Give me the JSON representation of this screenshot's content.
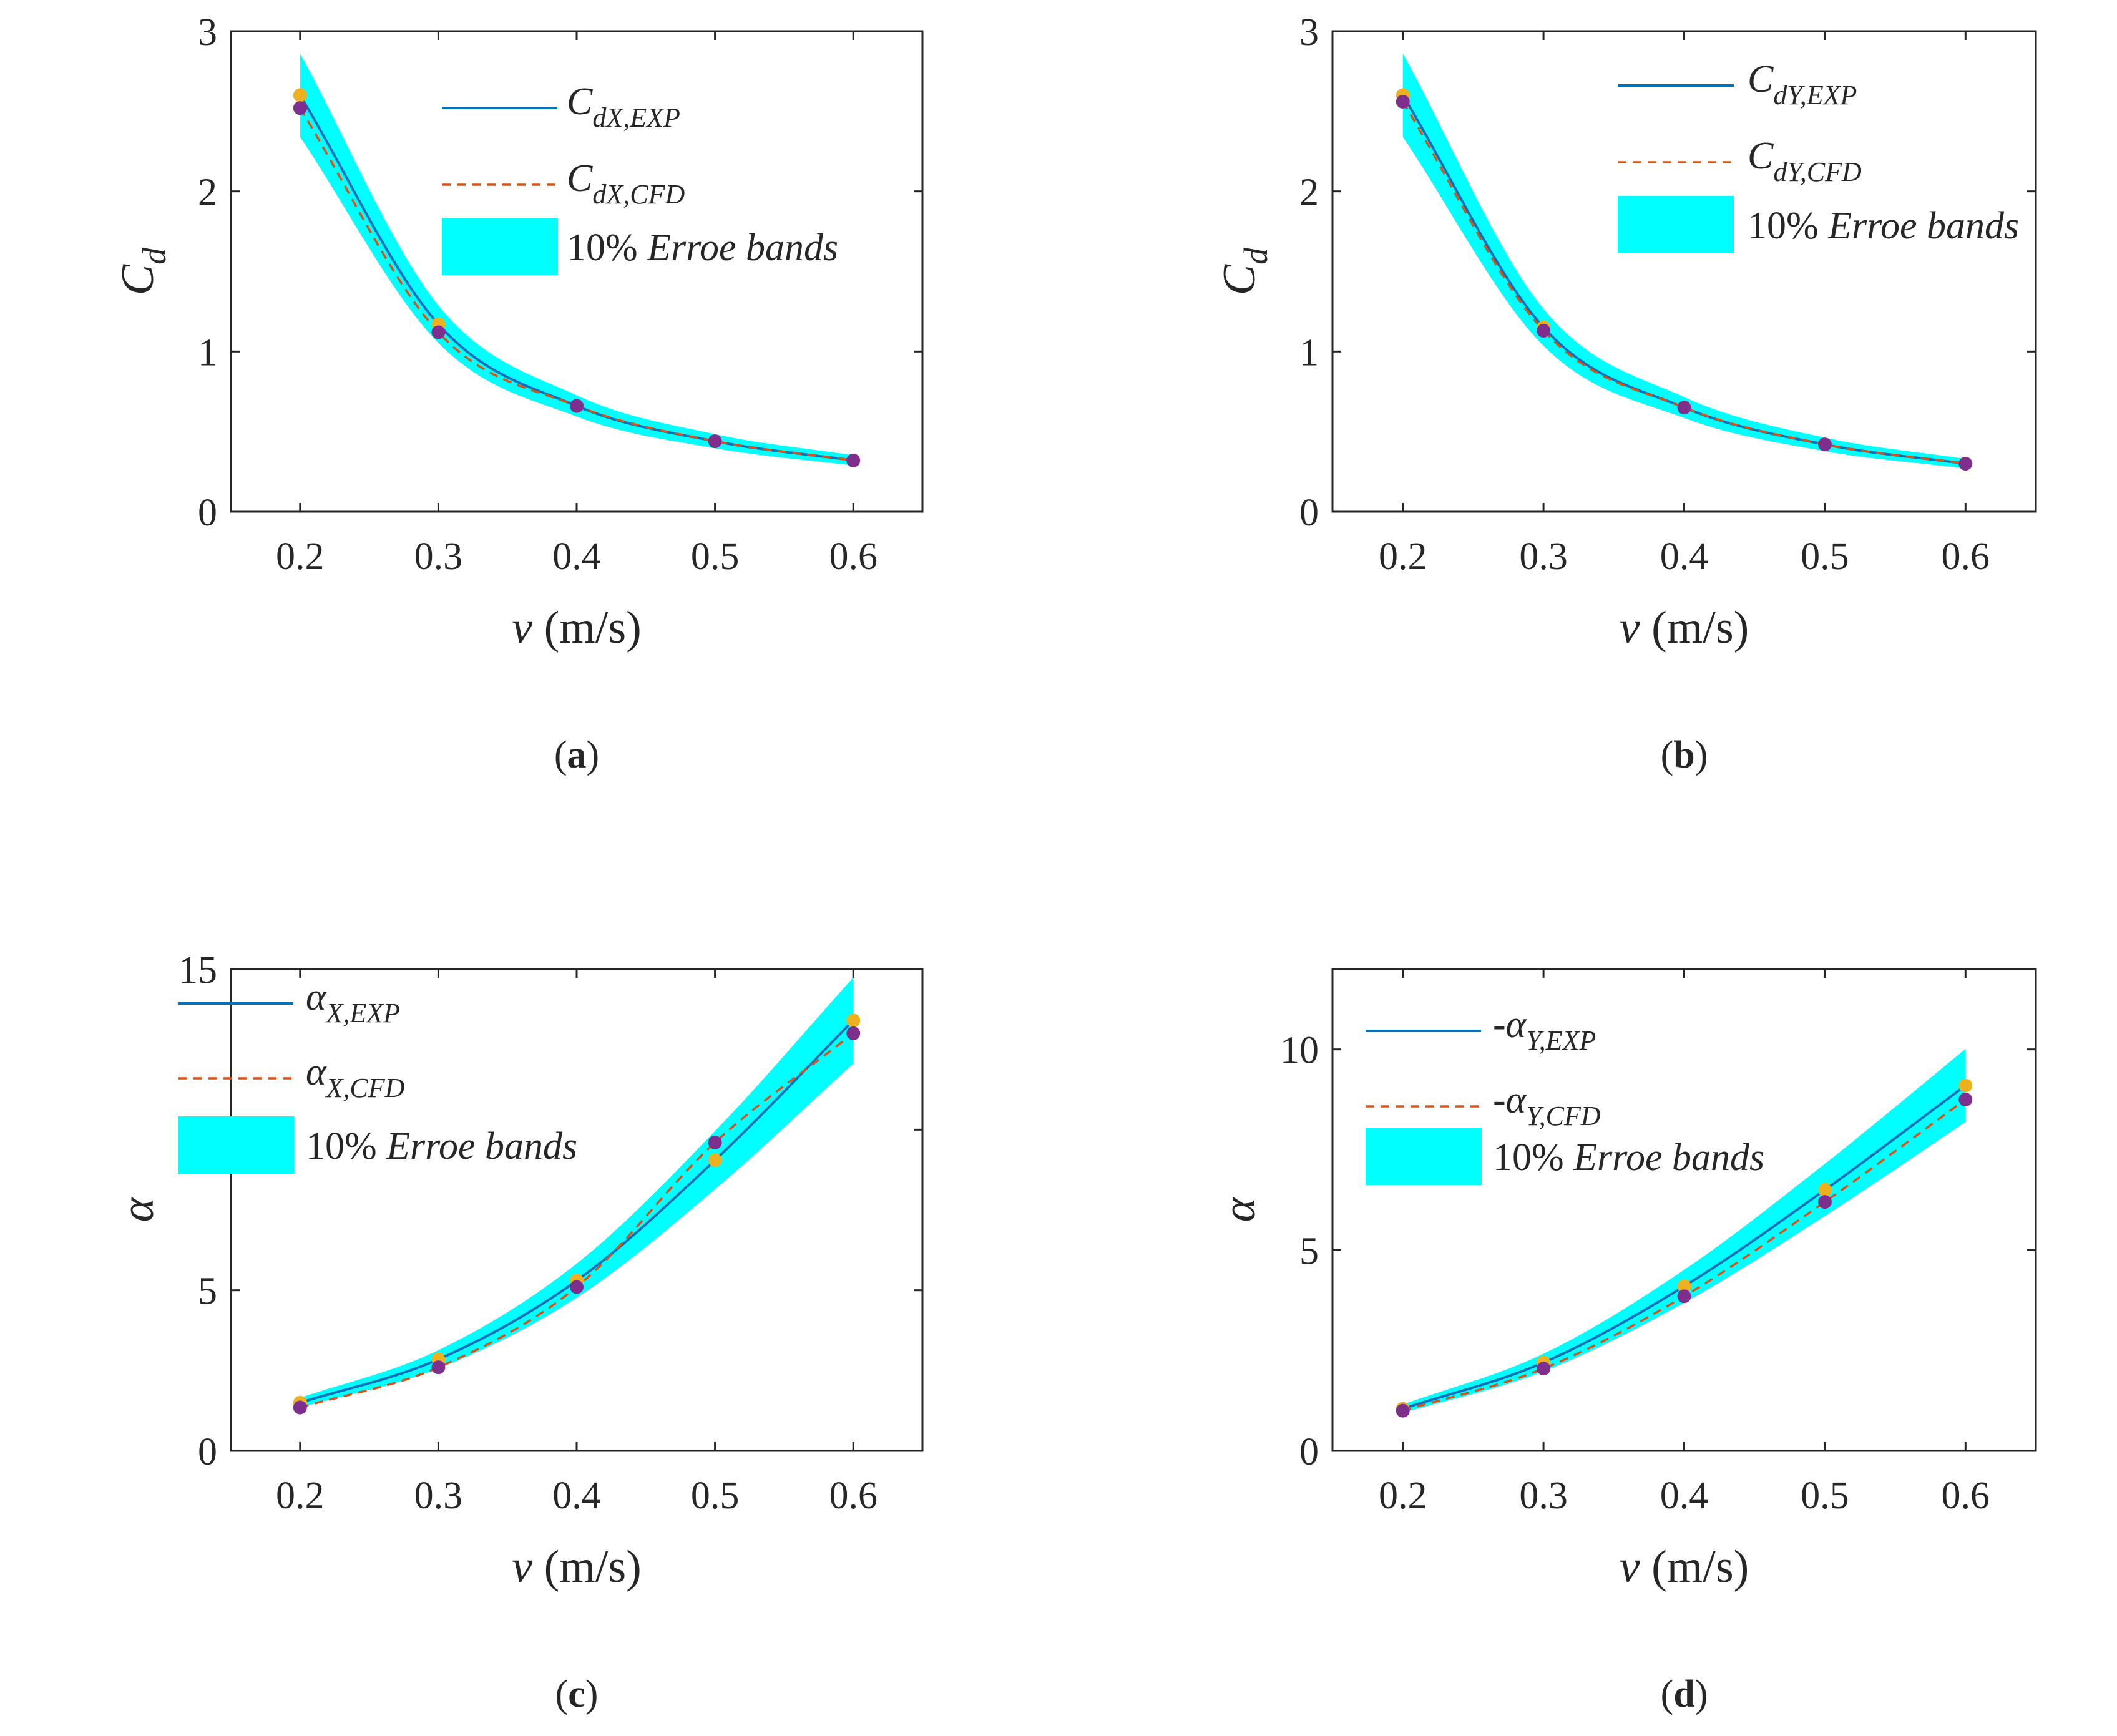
{
  "colors": {
    "exp_line": "#0072BD",
    "cfd_line": "#D95319",
    "band": "#00FFFF",
    "exp_marker": "#EDB120",
    "cfd_marker": "#7E2F8E",
    "axis": "#262626"
  },
  "chart_data": [
    {
      "type": "line",
      "panel": "a",
      "caption_letter": "a",
      "xlabel_var": "v",
      "xlabel_unit": " (m/s)",
      "ylabel_main": "C",
      "ylabel_sub": "d",
      "xlim": [
        0.15,
        0.65
      ],
      "ylim": [
        0,
        3
      ],
      "xticks": [
        "0.2",
        "0.3",
        "0.4",
        "0.5",
        "0.6"
      ],
      "yticks": [
        "0",
        "1",
        "2",
        "3"
      ],
      "x": [
        0.2,
        0.3,
        0.4,
        0.5,
        0.6
      ],
      "series": [
        {
          "name": "CdX,EXP",
          "legend_main": "C",
          "legend_sub": "dX,EXP",
          "style": "solid",
          "values": [
            2.6,
            1.17,
            0.66,
            0.44,
            0.32
          ]
        },
        {
          "name": "CdX,CFD",
          "legend_main": "C",
          "legend_sub": "dX,CFD",
          "style": "dashed",
          "values": [
            2.52,
            1.12,
            0.66,
            0.44,
            0.32
          ]
        }
      ],
      "band_label": "10% Erroe bands",
      "band_fraction": 0.1,
      "legend_position": "top-right"
    },
    {
      "type": "line",
      "panel": "b",
      "caption_letter": "b",
      "xlabel_var": "v",
      "xlabel_unit": " (m/s)",
      "ylabel_main": "C",
      "ylabel_sub": "d",
      "xlim": [
        0.15,
        0.65
      ],
      "ylim": [
        0,
        3
      ],
      "xticks": [
        "0.2",
        "0.3",
        "0.4",
        "0.5",
        "0.6"
      ],
      "yticks": [
        "0",
        "1",
        "2",
        "3"
      ],
      "x": [
        0.2,
        0.3,
        0.4,
        0.5,
        0.6
      ],
      "series": [
        {
          "name": "CdY,EXP",
          "legend_main": "C",
          "legend_sub": "dY,EXP",
          "style": "solid",
          "values": [
            2.6,
            1.15,
            0.65,
            0.42,
            0.3
          ]
        },
        {
          "name": "CdY,CFD",
          "legend_main": "C",
          "legend_sub": "dY,CFD",
          "style": "dashed",
          "values": [
            2.56,
            1.13,
            0.65,
            0.42,
            0.3
          ]
        }
      ],
      "band_label": "10% Erroe bands",
      "band_fraction": 0.1,
      "legend_position": "top-right"
    },
    {
      "type": "line",
      "panel": "c",
      "caption_letter": "c",
      "xlabel_var": "v",
      "xlabel_unit": " (m/s)",
      "ylabel_main": "α",
      "ylabel_sub": "",
      "xlim": [
        0.15,
        0.65
      ],
      "ylim": [
        0,
        15
      ],
      "xticks": [
        "0.2",
        "0.3",
        "0.4",
        "0.5",
        "0.6"
      ],
      "yticks": [
        "0",
        "5",
        "10",
        "15"
      ],
      "x": [
        0.2,
        0.3,
        0.4,
        0.5,
        0.6
      ],
      "series": [
        {
          "name": "αX,EXP",
          "legend_main": "α",
          "legend_sub": "X,EXP",
          "style": "solid",
          "values": [
            1.5,
            2.85,
            5.3,
            9.05,
            13.4
          ]
        },
        {
          "name": "αX,CFD",
          "legend_main": "α",
          "legend_sub": "X,CFD",
          "style": "dashed",
          "values": [
            1.35,
            2.6,
            5.1,
            9.6,
            13.0
          ]
        }
      ],
      "band_label": "10% Erroe bands",
      "band_fraction": 0.1,
      "legend_position": "top-left"
    },
    {
      "type": "line",
      "panel": "d",
      "caption_letter": "d",
      "xlabel_var": "v",
      "xlabel_unit": " (m/s)",
      "ylabel_main": "α",
      "ylabel_sub": "",
      "xlim": [
        0.15,
        0.65
      ],
      "ylim": [
        0,
        12
      ],
      "xticks": [
        "0.2",
        "0.3",
        "0.4",
        "0.5",
        "0.6"
      ],
      "yticks": [
        "0",
        "5",
        "10"
      ],
      "x": [
        0.2,
        0.3,
        0.4,
        0.5,
        0.6
      ],
      "series": [
        {
          "name": "-αY,EXP",
          "legend_main": "-α",
          "legend_sub": "Y,EXP",
          "style": "solid",
          "values": [
            1.05,
            2.2,
            4.1,
            6.5,
            9.1
          ]
        },
        {
          "name": "-αY,CFD",
          "legend_main": "-α",
          "legend_sub": "Y,CFD",
          "style": "dashed",
          "values": [
            1.0,
            2.05,
            3.85,
            6.2,
            8.75
          ]
        }
      ],
      "band_label": "10% Erroe bands",
      "band_fraction": 0.1,
      "legend_position": "top-left"
    }
  ]
}
